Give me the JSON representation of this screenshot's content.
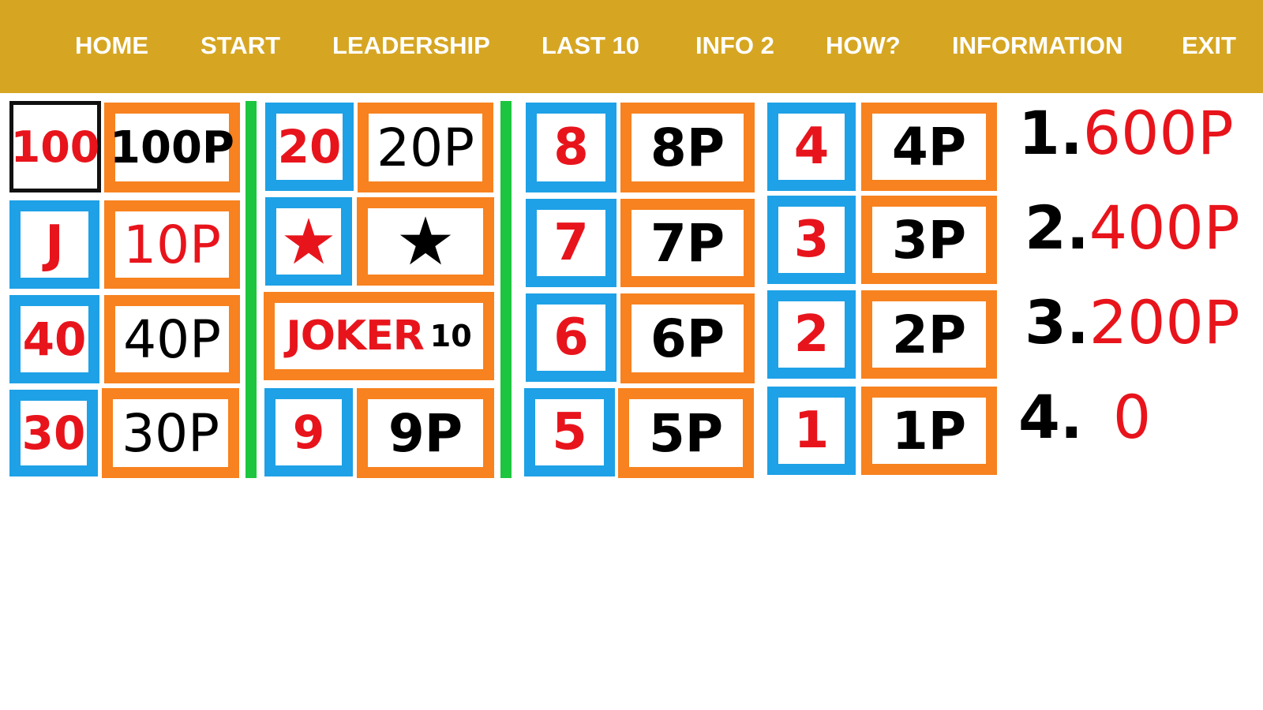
{
  "nav": [
    "HOME",
    "START",
    "LEADERSHIP",
    "LAST 10",
    "INFO 2",
    "HOW?",
    "INFORMATION",
    "EXIT"
  ],
  "colors": {
    "header": "#D6A623",
    "small_border": "#1EA1E6",
    "big_border": "#F7821F",
    "divider": "#1DC63E",
    "red": "#E8141C"
  },
  "board": {
    "col1": [
      {
        "symbol": "100",
        "payout": "100P",
        "selected": true
      },
      {
        "symbol": "J",
        "payout": "10P"
      },
      {
        "symbol": "40",
        "payout": "40P"
      },
      {
        "symbol": "30",
        "payout": "30P"
      }
    ],
    "col2": [
      {
        "symbol": "20",
        "payout": "20P"
      },
      {
        "symbol": "★",
        "payout": "★",
        "icon": "star-icon"
      },
      {
        "joker": "JOKER",
        "joker_value": "10"
      },
      {
        "symbol": "9",
        "payout": "9P"
      }
    ],
    "col3": [
      {
        "symbol": "8",
        "payout": "8P"
      },
      {
        "symbol": "7",
        "payout": "7P"
      },
      {
        "symbol": "6",
        "payout": "6P"
      },
      {
        "symbol": "5",
        "payout": "5P"
      }
    ],
    "col4": [
      {
        "symbol": "4",
        "payout": "4P"
      },
      {
        "symbol": "3",
        "payout": "3P"
      },
      {
        "symbol": "2",
        "payout": "2P"
      },
      {
        "symbol": "1",
        "payout": "1P"
      }
    ]
  },
  "ranking": [
    {
      "rank": "1.",
      "value": "600P"
    },
    {
      "rank": "2.",
      "value": "400P"
    },
    {
      "rank": "3.",
      "value": "200P"
    },
    {
      "rank": "4.",
      "value": " 0"
    }
  ]
}
